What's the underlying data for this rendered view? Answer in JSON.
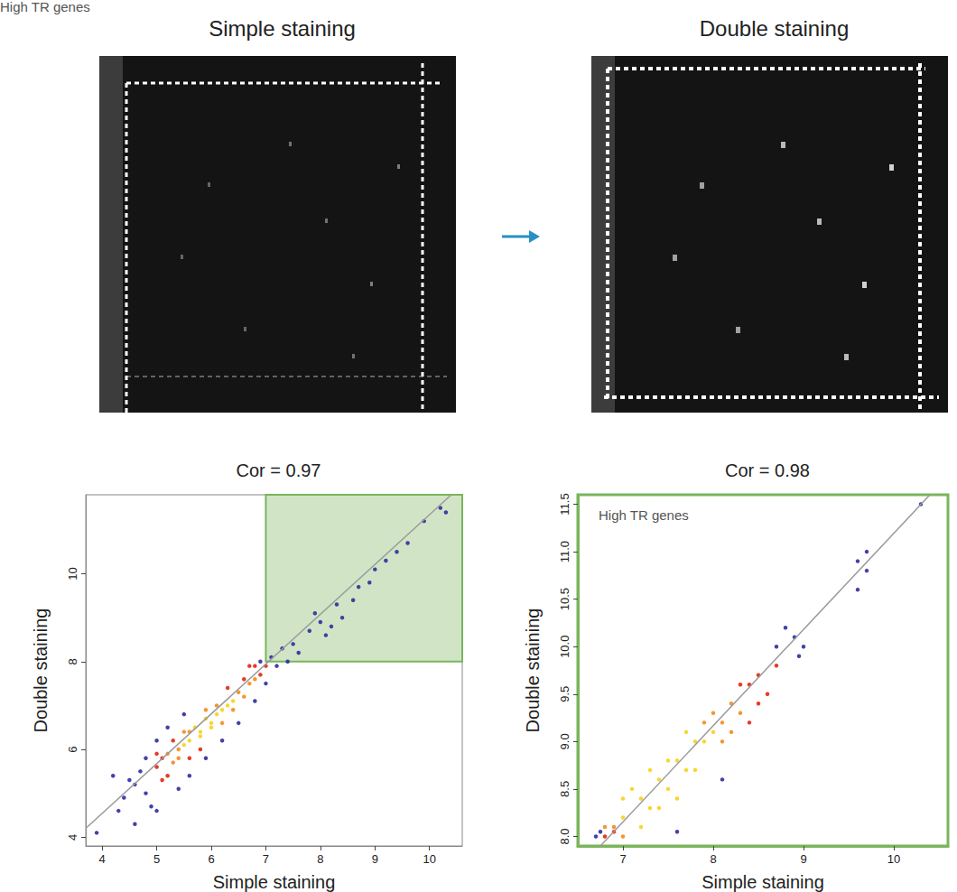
{
  "images": {
    "panels": [
      {
        "title": "Simple staining"
      },
      {
        "title": "Double staining"
      }
    ]
  },
  "chart_data": [
    {
      "type": "scatter",
      "title": "Cor = 0.97",
      "x_label": "Simple staining",
      "y_label": "Double staining",
      "xlim": [
        3.7,
        10.6
      ],
      "ylim": [
        3.8,
        11.8
      ],
      "xticks": [
        4,
        5,
        6,
        7,
        8,
        9,
        10
      ],
      "yticks": [
        4,
        6,
        8,
        10
      ],
      "grid": false,
      "annotations": [
        {
          "text": "High TR genes",
          "x": [
            7,
            10.6
          ],
          "y": [
            8,
            11.8
          ]
        }
      ],
      "series": [
        {
          "type": "scatter",
          "color": "#2e2e9e",
          "x": [
            4.7,
            4.8,
            4.9,
            4.6,
            5.0,
            4.5,
            4.2,
            4.3,
            3.9,
            4.8,
            5.0,
            5.2,
            5.5,
            5.4,
            5.6,
            5.9,
            6.2,
            6.5,
            6.8,
            7.0,
            6.9,
            7.1,
            7.2,
            7.3,
            7.5,
            7.6,
            7.8,
            8.0,
            8.1,
            8.3,
            8.4,
            8.6,
            8.7,
            8.9,
            9.0,
            9.2,
            9.4,
            9.6,
            9.9,
            10.2,
            10.3,
            7.9,
            8.2,
            7.4,
            4.4,
            4.6
          ],
          "y": [
            5.5,
            5.0,
            4.7,
            5.2,
            4.6,
            5.3,
            5.4,
            4.6,
            4.1,
            5.8,
            6.2,
            6.5,
            6.8,
            5.1,
            5.4,
            5.8,
            6.2,
            6.6,
            7.1,
            7.5,
            8.0,
            8.1,
            7.9,
            8.3,
            8.4,
            8.2,
            8.7,
            8.9,
            8.6,
            9.3,
            9.0,
            9.4,
            9.7,
            9.8,
            10.1,
            10.3,
            10.5,
            10.7,
            11.2,
            11.5,
            11.4,
            9.1,
            8.8,
            8.0,
            4.9,
            4.3
          ]
        },
        {
          "type": "scatter",
          "color": "#e52612",
          "x": [
            5.0,
            5.1,
            5.0,
            5.3,
            5.2,
            6.8,
            6.9,
            6.6,
            6.3,
            5.6,
            5.8,
            5.1,
            6.7,
            7.0
          ],
          "y": [
            5.6,
            5.3,
            5.9,
            6.2,
            5.4,
            7.9,
            7.7,
            7.6,
            7.4,
            5.8,
            6.0,
            5.8,
            7.9,
            7.9
          ]
        },
        {
          "type": "scatter",
          "color": "#f58a1f",
          "x": [
            5.2,
            5.4,
            5.3,
            5.6,
            6.5,
            6.6,
            6.7,
            5.5,
            6.2,
            6.4,
            5.9,
            6.1,
            5.4,
            6.8
          ],
          "y": [
            5.9,
            6.0,
            5.7,
            6.4,
            7.3,
            7.2,
            7.5,
            6.4,
            6.6,
            6.9,
            6.9,
            7.0,
            5.8,
            7.6
          ]
        },
        {
          "type": "scatter",
          "color": "#f7d21a",
          "x": [
            5.6,
            5.8,
            6.0,
            6.2,
            6.4,
            5.7,
            5.9,
            6.1,
            6.3,
            5.5,
            6.0,
            5.8
          ],
          "y": [
            6.2,
            6.4,
            6.6,
            6.9,
            7.1,
            6.5,
            6.7,
            6.8,
            7.0,
            6.1,
            6.5,
            6.3
          ]
        },
        {
          "type": "line",
          "color": "#9a9a9a",
          "x": [
            3.7,
            10.4
          ],
          "y": [
            4.2,
            11.8
          ]
        }
      ]
    },
    {
      "type": "scatter",
      "title": "Cor = 0.98",
      "x_label": "Simple staining",
      "y_label": "Double staining",
      "xlim": [
        6.5,
        10.6
      ],
      "ylim": [
        7.9,
        11.6
      ],
      "xticks": [
        7,
        8,
        9,
        10
      ],
      "yticks": [
        {
          "value": 8,
          "label": "8.0"
        },
        8.5,
        {
          "value": 9,
          "label": "9.0"
        },
        9.5,
        {
          "value": 10,
          "label": "10.0"
        },
        10.5,
        {
          "value": 11,
          "label": "11.0"
        },
        11.5
      ],
      "grid": false,
      "annotations": [
        {
          "text": "High TR genes"
        }
      ],
      "series": [
        {
          "type": "scatter",
          "color": "#2e2e9e",
          "x": [
            6.7,
            6.75,
            7.6,
            8.9,
            9.0,
            8.8,
            8.95,
            8.7,
            9.6,
            9.7,
            9.6,
            9.7,
            10.3,
            8.1
          ],
          "y": [
            8.0,
            8.05,
            8.05,
            10.1,
            10.0,
            10.2,
            9.9,
            10.0,
            10.9,
            11.0,
            10.6,
            10.8,
            11.5,
            8.6
          ]
        },
        {
          "type": "scatter",
          "color": "#e52612",
          "x": [
            6.8,
            6.9,
            8.4,
            8.5,
            8.6,
            8.3,
            8.7,
            8.5,
            8.4
          ],
          "y": [
            8.0,
            8.05,
            9.6,
            9.7,
            9.5,
            9.6,
            9.8,
            9.4,
            9.2
          ]
        },
        {
          "type": "scatter",
          "color": "#f58a1f",
          "x": [
            6.9,
            7.0,
            8.0,
            8.1,
            8.2,
            8.3,
            8.1,
            7.9,
            8.2,
            6.8
          ],
          "y": [
            8.1,
            8.0,
            9.3,
            9.2,
            9.4,
            9.3,
            9.0,
            9.2,
            9.1,
            8.1
          ]
        },
        {
          "type": "scatter",
          "color": "#f7d21a",
          "x": [
            7.0,
            7.2,
            7.3,
            7.4,
            7.5,
            7.6,
            7.7,
            7.8,
            7.9,
            7.1,
            7.3,
            7.5,
            7.6,
            7.8,
            8.0,
            7.2,
            7.4,
            7.0,
            7.7
          ],
          "y": [
            8.2,
            8.4,
            8.3,
            8.6,
            8.5,
            8.8,
            8.7,
            9.0,
            9.0,
            8.5,
            8.7,
            8.8,
            8.4,
            8.7,
            9.1,
            8.1,
            8.3,
            8.4,
            9.1
          ]
        },
        {
          "type": "line",
          "color": "#9a9a9a",
          "x": [
            6.75,
            10.4
          ],
          "y": [
            7.9,
            11.6
          ]
        }
      ]
    }
  ]
}
